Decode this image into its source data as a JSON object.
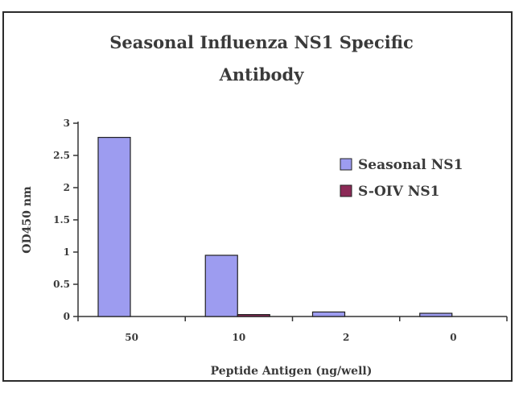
{
  "chart_data": {
    "type": "bar",
    "title": [
      "Seasonal Influenza NS1 Specific",
      "Antibody"
    ],
    "xlabel": "Peptide Antigen (ng/well)",
    "ylabel": "OD450 nm",
    "categories": [
      "50",
      "10",
      "2",
      "0"
    ],
    "yticks": [
      "0",
      "0.5",
      "1",
      "1.5",
      "2",
      "2.5",
      "3"
    ],
    "ylim": [
      0,
      3
    ],
    "grid": false,
    "legend_position": "right",
    "series": [
      {
        "name": "Seasonal NS1",
        "color": "#9d9cf0",
        "values": [
          2.78,
          0.95,
          0.07,
          0.05
        ]
      },
      {
        "name": "S-OIV NS1",
        "color": "#8c2a57",
        "values": [
          0,
          0.03,
          0,
          0
        ]
      }
    ]
  }
}
